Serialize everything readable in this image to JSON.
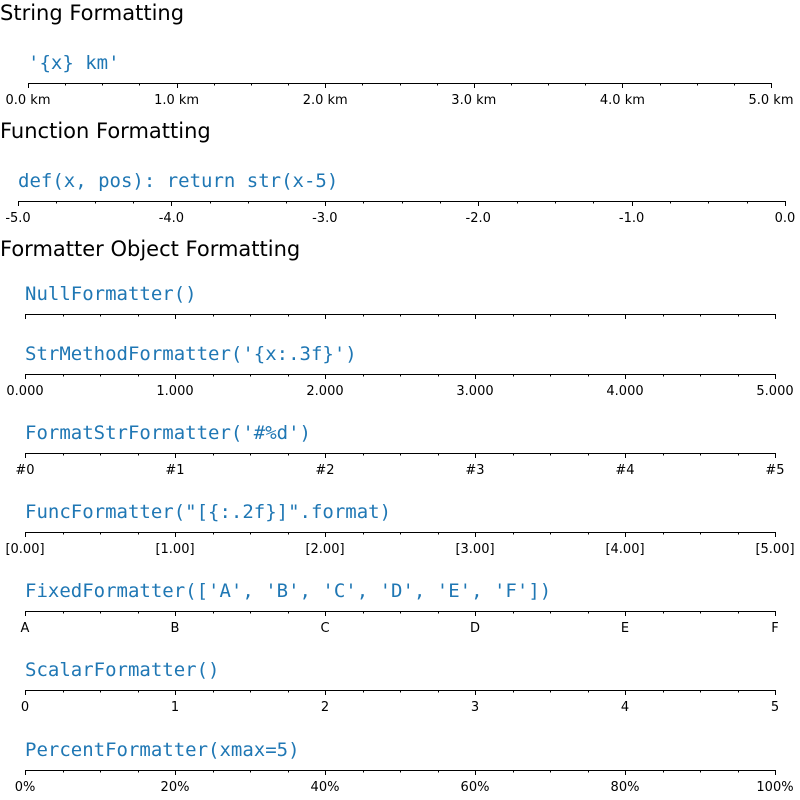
{
  "section_titles": [
    "String Formatting",
    "Function Formatting",
    "Formatter Object Formatting"
  ],
  "colors": {
    "annotation": "#1f77b4",
    "axis": "#000000"
  },
  "chart_data": [
    {
      "type": "axis",
      "xlim": [
        0,
        5
      ],
      "major_ticks": [
        0,
        1,
        2,
        3,
        4,
        5
      ],
      "minor_step": 0.25,
      "annotation": "'{x} km'",
      "tick_labels": [
        "0.0 km",
        "1.0 km",
        "2.0 km",
        "3.0 km",
        "4.0 km",
        "5.0 km"
      ]
    },
    {
      "type": "axis",
      "xlim": [
        0,
        5
      ],
      "major_ticks": [
        0,
        1,
        2,
        3,
        4,
        5
      ],
      "minor_step": 0.25,
      "annotation": "def(x, pos): return str(x-5)",
      "tick_labels": [
        "-5.0",
        "-4.0",
        "-3.0",
        "-2.0",
        "-1.0",
        "0.0"
      ]
    },
    {
      "type": "axis",
      "xlim": [
        0,
        5
      ],
      "major_ticks": [
        0,
        1,
        2,
        3,
        4,
        5
      ],
      "minor_step": 0.25,
      "annotation": "NullFormatter()",
      "tick_labels": []
    },
    {
      "type": "axis",
      "xlim": [
        0,
        5
      ],
      "major_ticks": [
        0,
        1,
        2,
        3,
        4,
        5
      ],
      "minor_step": 0.25,
      "annotation": "StrMethodFormatter('{x:.3f}')",
      "tick_labels": [
        "0.000",
        "1.000",
        "2.000",
        "3.000",
        "4.000",
        "5.000"
      ]
    },
    {
      "type": "axis",
      "xlim": [
        0,
        5
      ],
      "major_ticks": [
        0,
        1,
        2,
        3,
        4,
        5
      ],
      "minor_step": 0.25,
      "annotation": "FormatStrFormatter('#%d')",
      "tick_labels": [
        "#0",
        "#1",
        "#2",
        "#3",
        "#4",
        "#5"
      ]
    },
    {
      "type": "axis",
      "xlim": [
        0,
        5
      ],
      "major_ticks": [
        0,
        1,
        2,
        3,
        4,
        5
      ],
      "minor_step": 0.25,
      "annotation": "FuncFormatter(\"[{:.2f}]\".format)",
      "tick_labels": [
        "[0.00]",
        "[1.00]",
        "[2.00]",
        "[3.00]",
        "[4.00]",
        "[5.00]"
      ]
    },
    {
      "type": "axis",
      "xlim": [
        0,
        5
      ],
      "major_ticks": [
        0,
        1,
        2,
        3,
        4,
        5
      ],
      "minor_step": 0.25,
      "annotation": "FixedFormatter(['A', 'B', 'C', 'D', 'E', 'F'])",
      "tick_labels": [
        "A",
        "B",
        "C",
        "D",
        "E",
        "F"
      ]
    },
    {
      "type": "axis",
      "xlim": [
        0,
        5
      ],
      "major_ticks": [
        0,
        1,
        2,
        3,
        4,
        5
      ],
      "minor_step": 0.25,
      "annotation": "ScalarFormatter()",
      "tick_labels": [
        "0",
        "1",
        "2",
        "3",
        "4",
        "5"
      ]
    },
    {
      "type": "axis",
      "xlim": [
        0,
        5
      ],
      "major_ticks": [
        0,
        1,
        2,
        3,
        4,
        5
      ],
      "minor_step": 0.25,
      "annotation": "PercentFormatter(xmax=5)",
      "tick_labels": [
        "0%",
        "20%",
        "40%",
        "60%",
        "80%",
        "100%"
      ]
    }
  ]
}
